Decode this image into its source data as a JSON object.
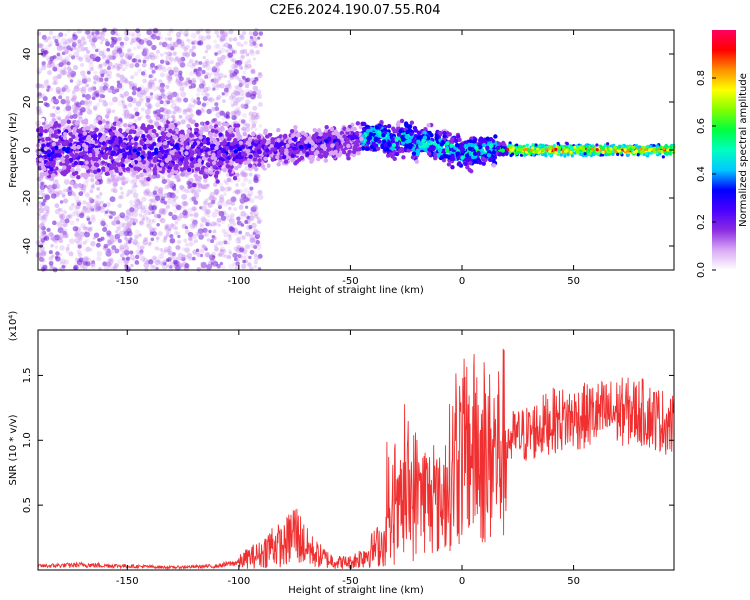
{
  "title": "C2E6.2024.190.07.55.R04",
  "chart_data": [
    {
      "type": "heatmap",
      "xlabel": "Height of straight line (km)",
      "ylabel": "Frequency (Hz)",
      "xlim": [
        -190,
        95
      ],
      "ylim": [
        -50,
        50
      ],
      "xticks": [
        -150,
        -100,
        -50,
        0,
        50
      ],
      "yticks": [
        -40,
        -20,
        0,
        20,
        40
      ],
      "colorbar": {
        "label": "Normalized spectral amplitude",
        "range": [
          0,
          1
        ],
        "ticks": [
          "0.0",
          "0.2",
          "0.4",
          "0.6",
          "0.8"
        ],
        "colors": [
          "#ffffff",
          "#d9a8f5",
          "#8a2be2",
          "#4a00ff",
          "#0000ff",
          "#00c8ff",
          "#00ffc0",
          "#00ff40",
          "#80ff00",
          "#ffff00",
          "#ff9000",
          "#ff0000",
          "#ff0060"
        ]
      },
      "center_frequency": [
        {
          "x": -190,
          "y": 0
        },
        {
          "x": -150,
          "y": 0
        },
        {
          "x": -120,
          "y": -1
        },
        {
          "x": -100,
          "y": 0
        },
        {
          "x": -80,
          "y": 1
        },
        {
          "x": -60,
          "y": 3
        },
        {
          "x": -50,
          "y": 4
        },
        {
          "x": -40,
          "y": 6
        },
        {
          "x": -35,
          "y": 5
        },
        {
          "x": -30,
          "y": 3
        },
        {
          "x": -25,
          "y": 6
        },
        {
          "x": -20,
          "y": 2
        },
        {
          "x": -15,
          "y": 4
        },
        {
          "x": -10,
          "y": 1
        },
        {
          "x": -5,
          "y": 0
        },
        {
          "x": 0,
          "y": -1
        },
        {
          "x": 10,
          "y": 0
        },
        {
          "x": 20,
          "y": 0
        },
        {
          "x": 95,
          "y": 0
        }
      ]
    },
    {
      "type": "line",
      "xlabel": "Height of straight line (km)",
      "ylabel": "SNR (10 * v/v)",
      "y_multiplier": "(x10⁴)",
      "xlim": [
        -190,
        95
      ],
      "ylim": [
        0,
        1.85
      ],
      "xticks": [
        -150,
        -100,
        -50,
        0,
        50
      ],
      "yticks": [
        0.5,
        1.0,
        1.5
      ],
      "color": "#f03030",
      "envelope": [
        {
          "x": -190,
          "y": 0.03
        },
        {
          "x": -170,
          "y": 0.04
        },
        {
          "x": -150,
          "y": 0.03
        },
        {
          "x": -130,
          "y": 0.02
        },
        {
          "x": -110,
          "y": 0.03
        },
        {
          "x": -100,
          "y": 0.06
        },
        {
          "x": -95,
          "y": 0.1
        },
        {
          "x": -90,
          "y": 0.12
        },
        {
          "x": -85,
          "y": 0.2
        },
        {
          "x": -80,
          "y": 0.18
        },
        {
          "x": -75,
          "y": 0.3
        },
        {
          "x": -70,
          "y": 0.18
        },
        {
          "x": -65,
          "y": 0.12
        },
        {
          "x": -60,
          "y": 0.08
        },
        {
          "x": -55,
          "y": 0.06
        },
        {
          "x": -50,
          "y": 0.06
        },
        {
          "x": -45,
          "y": 0.1
        },
        {
          "x": -40,
          "y": 0.16
        },
        {
          "x": -35,
          "y": 0.22
        },
        {
          "x": -30,
          "y": 0.35
        },
        {
          "x": -25,
          "y": 0.55
        },
        {
          "x": -20,
          "y": 0.6
        },
        {
          "x": -15,
          "y": 0.55
        },
        {
          "x": -10,
          "y": 0.5
        },
        {
          "x": -5,
          "y": 0.75
        },
        {
          "x": 0,
          "y": 0.9
        },
        {
          "x": 5,
          "y": 0.95
        },
        {
          "x": 10,
          "y": 0.85
        },
        {
          "x": 15,
          "y": 0.9
        },
        {
          "x": 20,
          "y": 1.0
        },
        {
          "x": 30,
          "y": 1.05
        },
        {
          "x": 40,
          "y": 1.15
        },
        {
          "x": 50,
          "y": 1.17
        },
        {
          "x": 60,
          "y": 1.2
        },
        {
          "x": 70,
          "y": 1.22
        },
        {
          "x": 80,
          "y": 1.22
        },
        {
          "x": 90,
          "y": 1.15
        },
        {
          "x": 95,
          "y": 1.1
        }
      ]
    }
  ]
}
